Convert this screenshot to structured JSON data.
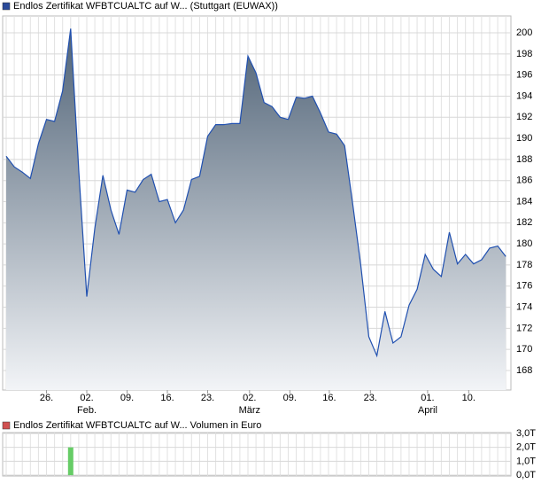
{
  "chart_data": [
    {
      "type": "area",
      "title": "Endlos Zertifikat WFBTCUALTC auf W... (Stuttgart (EUWAX))",
      "legend_color": "#2a4a9a",
      "color": "#2050b0",
      "fill_top": "#4f6276",
      "fill_bottom": "#f2f4f7",
      "x": [
        0,
        1,
        2,
        3,
        4,
        5,
        6,
        7,
        8,
        9,
        10,
        11,
        12,
        13,
        14,
        15,
        16,
        17,
        18,
        19,
        20,
        21,
        22,
        23,
        24,
        25,
        26,
        27,
        28,
        29,
        30,
        31,
        32,
        33,
        34,
        35,
        36,
        37,
        38,
        39,
        40,
        41,
        42,
        43,
        44,
        45,
        46,
        47,
        48,
        49,
        50,
        51,
        52,
        53,
        54,
        55,
        56,
        57,
        58,
        59,
        60,
        61,
        62
      ],
      "values": [
        188.3,
        187.3,
        186.8,
        186.2,
        189.5,
        191.8,
        191.6,
        194.5,
        200.4,
        187,
        175.0,
        181.5,
        186.5,
        183.2,
        180.9,
        185.1,
        184.9,
        186.1,
        186.6,
        184.0,
        184.2,
        182.0,
        183.2,
        186.1,
        186.4,
        190.2,
        191.3,
        191.3,
        191.4,
        191.4,
        197.8,
        196.2,
        193.4,
        193.0,
        192.0,
        191.8,
        193.9,
        193.8,
        194.0,
        192.4,
        190.6,
        190.4,
        189.3,
        183.8,
        178.0,
        171.2,
        169.4,
        173.6,
        170.6,
        171.2,
        174.2,
        175.7,
        179.0,
        177.6,
        176.9,
        181.1,
        178.1,
        179.0,
        178.1,
        178.5,
        179.6,
        179.8,
        178.8
      ],
      "xlim": [
        -0.44,
        62.64
      ],
      "ylim": [
        166.15,
        201.6
      ],
      "yticks": [
        168,
        170,
        172,
        174,
        176,
        178,
        180,
        182,
        184,
        186,
        188,
        190,
        192,
        194,
        196,
        198,
        200
      ],
      "xticks": [
        {
          "value": 5,
          "label": "26."
        },
        {
          "value": 10,
          "label": "02."
        },
        {
          "value": 15,
          "label": "09."
        },
        {
          "value": 20,
          "label": "16."
        },
        {
          "value": 25,
          "label": "23."
        },
        {
          "value": 30.2,
          "label": "02."
        },
        {
          "value": 35.2,
          "label": "09."
        },
        {
          "value": 40.1,
          "label": "16."
        },
        {
          "value": 45.2,
          "label": "23."
        },
        {
          "value": 52.3,
          "label": "01."
        },
        {
          "value": 57.4,
          "label": "10."
        }
      ],
      "month_labels": [
        {
          "value": 10,
          "label": "Feb."
        },
        {
          "value": 30.2,
          "label": "März"
        },
        {
          "value": 52.3,
          "label": "April"
        }
      ],
      "grid": true
    },
    {
      "type": "bar",
      "title": "Endlos Zertifikat WFBTCUALTC auf W... Volumen in Euro",
      "legend_color": "#d05050",
      "color": "#66cc66",
      "x": [
        0,
        1,
        2,
        3,
        4,
        5,
        6,
        7,
        8,
        9,
        10,
        11,
        12,
        13,
        14,
        15,
        16,
        17,
        18,
        19,
        20,
        21,
        22,
        23,
        24,
        25,
        26,
        27,
        28,
        29,
        30,
        31,
        32,
        33,
        34,
        35,
        36,
        37,
        38,
        39,
        40,
        41,
        42,
        43,
        44,
        45,
        46,
        47,
        48,
        49,
        50,
        51,
        52,
        53,
        54,
        55,
        56,
        57,
        58,
        59,
        60,
        61,
        62
      ],
      "values": [
        0,
        0,
        0,
        0,
        0,
        0,
        0,
        0,
        2.0,
        0,
        0,
        0,
        0,
        0,
        0,
        0,
        0,
        0,
        0,
        0,
        0,
        0,
        0,
        0,
        0,
        0,
        0,
        0,
        0,
        0,
        0,
        0,
        0,
        0,
        0,
        0,
        0,
        0,
        0,
        0,
        0,
        0,
        0,
        0,
        0,
        0,
        0,
        0,
        0,
        0,
        0,
        0,
        0,
        0,
        0,
        0,
        0,
        0,
        0,
        0,
        0,
        0,
        0
      ],
      "xlim": [
        -0.44,
        62.64
      ],
      "ylim": [
        -0.06,
        3.06
      ],
      "yticks": [
        {
          "value": 0,
          "label": "0,0T"
        },
        {
          "value": 1,
          "label": "1,0T"
        },
        {
          "value": 2,
          "label": "2,0T"
        },
        {
          "value": 3,
          "label": "3,0T"
        }
      ],
      "grid": true
    }
  ]
}
